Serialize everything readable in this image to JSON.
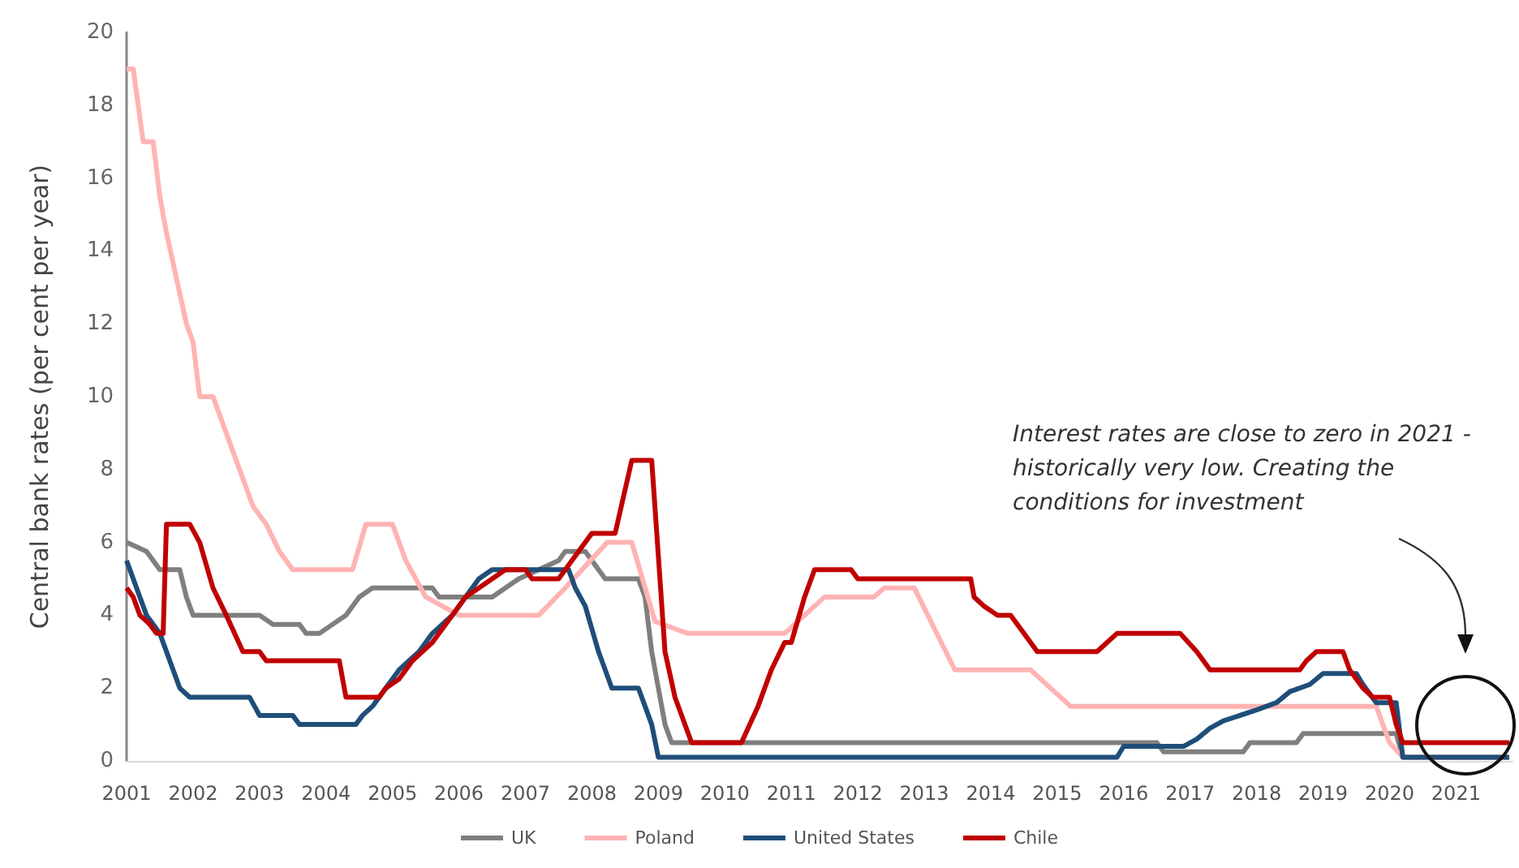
{
  "chart_data": {
    "type": "line",
    "ylabel": "Central bank rates (per cent per year)",
    "xlim": [
      2001,
      2021.85
    ],
    "xticks": [
      2001,
      2002,
      2003,
      2004,
      2005,
      2006,
      2007,
      2008,
      2009,
      2010,
      2011,
      2012,
      2013,
      2014,
      2015,
      2016,
      2017,
      2018,
      2019,
      2020,
      2021
    ],
    "ylim": [
      0,
      20
    ],
    "yticks": [
      0,
      2,
      4,
      6,
      8,
      10,
      12,
      14,
      16,
      18,
      20
    ],
    "grid": false,
    "legend": "bottom",
    "marker": "none",
    "line_style": "solid",
    "annotations": [
      "Interest rates are close to zero in 2021 - historically very low. Creating the conditions for  investment"
    ],
    "series": [
      {
        "name": "UK",
        "color": "#7f7f7f",
        "x": [
          2001,
          2001.3,
          2001.5,
          2001.8,
          2001.9,
          2002.0,
          2003.0,
          2003.2,
          2003.6,
          2003.7,
          2003.9,
          2004.1,
          2004.3,
          2004.5,
          2004.7,
          2005.6,
          2005.7,
          2006.5,
          2006.7,
          2006.9,
          2007.2,
          2007.5,
          2007.6,
          2007.9,
          2008.0,
          2008.2,
          2008.7,
          2008.8,
          2008.9,
          2009.0,
          2009.1,
          2009.2,
          2016.5,
          2016.6,
          2017.8,
          2017.9,
          2018.6,
          2018.7,
          2020.1,
          2020.2,
          2021.8
        ],
        "values": [
          6,
          5.75,
          5.25,
          5.25,
          4.5,
          4,
          4,
          3.75,
          3.75,
          3.5,
          3.5,
          3.75,
          4,
          4.5,
          4.75,
          4.75,
          4.5,
          4.5,
          4.75,
          5,
          5.25,
          5.5,
          5.75,
          5.75,
          5.5,
          5,
          5,
          4.5,
          3,
          2,
          1,
          0.5,
          0.5,
          0.25,
          0.25,
          0.5,
          0.5,
          0.75,
          0.75,
          0.1,
          0.1
        ]
      },
      {
        "name": "Poland",
        "color": "#ffb3b3",
        "x": [
          2001,
          2001.1,
          2001.25,
          2001.4,
          2001.5,
          2001.6,
          2001.9,
          2002.0,
          2002.1,
          2002.3,
          2002.6,
          2002.9,
          2003.1,
          2003.3,
          2003.5,
          2004.4,
          2004.6,
          2005.0,
          2005.2,
          2005.5,
          2006.0,
          2007.2,
          2007.6,
          2008.23,
          2008.6,
          2008.95,
          2009.44,
          2010.9,
          2011.5,
          2012.24,
          2012.4,
          2012.85,
          2013.46,
          2014.6,
          2015.2,
          2019.8,
          2020.0,
          2020.2,
          2021.8
        ],
        "values": [
          19,
          19,
          17,
          17,
          15.5,
          14.5,
          12,
          11.5,
          10,
          10,
          8.5,
          7,
          6.5,
          5.75,
          5.25,
          5.25,
          6.5,
          6.5,
          5.5,
          4.5,
          4,
          4,
          4.75,
          6,
          6,
          3.83,
          3.5,
          3.5,
          4.5,
          4.5,
          4.75,
          4.75,
          2.5,
          2.5,
          1.5,
          1.5,
          0.5,
          0.1,
          0.1
        ]
      },
      {
        "name": "United States",
        "color": "#1f4e79",
        "x": [
          2001,
          2001.1,
          2001.2,
          2001.3,
          2001.5,
          2001.6,
          2001.7,
          2001.8,
          2001.95,
          2002.85,
          2003.0,
          2003.5,
          2003.6,
          2004.45,
          2004.55,
          2004.7,
          2004.9,
          2005.1,
          2005.4,
          2005.6,
          2005.9,
          2006.1,
          2006.3,
          2006.5,
          2007.65,
          2007.75,
          2007.9,
          2008.1,
          2008.3,
          2008.7,
          2008.8,
          2008.9,
          2009.0,
          2015.9,
          2016.0,
          2016.9,
          2017.1,
          2017.3,
          2017.5,
          2018.0,
          2018.3,
          2018.5,
          2018.8,
          2019.0,
          2019.5,
          2019.6,
          2019.8,
          2020.1,
          2020.2,
          2021.8
        ],
        "values": [
          5.5,
          5,
          4.5,
          4,
          3.5,
          3,
          2.5,
          2,
          1.75,
          1.75,
          1.25,
          1.25,
          1,
          1,
          1.25,
          1.5,
          2,
          2.5,
          3,
          3.5,
          4,
          4.5,
          5,
          5.25,
          5.25,
          4.75,
          4.25,
          3,
          2,
          2,
          1.5,
          1,
          0.1,
          0.1,
          0.4,
          0.4,
          0.6,
          0.9,
          1.1,
          1.4,
          1.6,
          1.9,
          2.1,
          2.4,
          2.4,
          2.1,
          1.6,
          1.6,
          0.1,
          0.1
        ]
      },
      {
        "name": "Chile",
        "color": "#c00000",
        "x": [
          2001,
          2001.1,
          2001.2,
          2001.35,
          2001.45,
          2001.55,
          2001.6,
          2001.95,
          2002.1,
          2002.3,
          2002.5,
          2002.75,
          2003.0,
          2003.1,
          2004.2,
          2004.3,
          2004.8,
          2004.9,
          2005.1,
          2005.3,
          2005.6,
          2005.9,
          2006.1,
          2006.3,
          2006.5,
          2006.7,
          2007.0,
          2007.1,
          2007.5,
          2007.6,
          2007.8,
          2008.0,
          2008.35,
          2008.6,
          2008.9,
          2009.1,
          2009.25,
          2009.5,
          2010.25,
          2010.5,
          2010.7,
          2010.9,
          2011.0,
          2011.2,
          2011.35,
          2011.9,
          2012.0,
          2013.7,
          2013.75,
          2013.9,
          2014.1,
          2014.3,
          2014.5,
          2014.7,
          2015.6,
          2015.75,
          2015.9,
          2016.85,
          2017.1,
          2017.3,
          2018.65,
          2018.75,
          2018.9,
          2019.3,
          2019.4,
          2019.6,
          2019.75,
          2020.0,
          2020.1,
          2020.2,
          2021.8
        ],
        "values": [
          4.75,
          4.5,
          4,
          3.75,
          3.5,
          3.5,
          6.5,
          6.5,
          6,
          4.75,
          4,
          3,
          3,
          2.75,
          2.75,
          1.75,
          1.75,
          2,
          2.25,
          2.75,
          3.25,
          4,
          4.5,
          4.75,
          5,
          5.25,
          5.25,
          5,
          5,
          5.25,
          5.75,
          6.25,
          6.25,
          8.25,
          8.25,
          3,
          1.75,
          0.5,
          0.5,
          1.5,
          2.5,
          3.25,
          3.25,
          4.5,
          5.25,
          5.25,
          5,
          5,
          4.5,
          4.25,
          4,
          4,
          3.5,
          3,
          3,
          3.25,
          3.5,
          3.5,
          3,
          2.5,
          2.5,
          2.75,
          3,
          3,
          2.5,
          2,
          1.75,
          1.75,
          1,
          0.5,
          0.5
        ]
      }
    ]
  }
}
